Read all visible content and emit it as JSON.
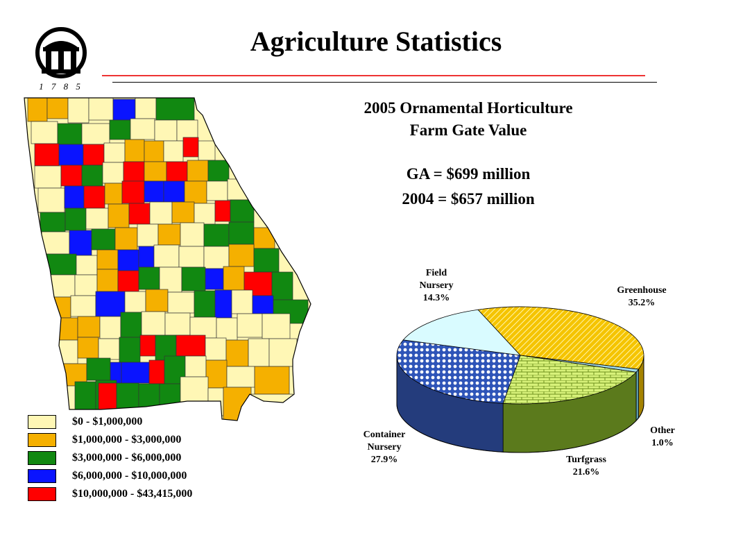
{
  "slide": {
    "title": "Agriculture Statistics",
    "logo_text": "1 7 8 5"
  },
  "legend": [
    {
      "label": "$0 - $1,000,000",
      "color": "#fff7b5"
    },
    {
      "label": "$1,000,000 - $3,000,000",
      "color": "#f5b000"
    },
    {
      "label": "$3,000,000 - $6,000,000",
      "color": "#118811"
    },
    {
      "label": "$6,000,000 - $10,000,000",
      "color": "#0a14ff"
    },
    {
      "label": "$10,000,000 - $43,415,000",
      "color": "#ff0000"
    }
  ],
  "info": {
    "subtitle_line1": "2005 Ornamental Horticulture",
    "subtitle_line2": "Farm Gate Value",
    "ga_value": "GA = $699 million",
    "prior_value": "2004 = $657 million"
  },
  "chart_data": {
    "type": "pie",
    "style": "3d",
    "slices": [
      {
        "name_lines": [
          "Greenhouse"
        ],
        "value": 35.2,
        "label": "35.2%",
        "color": "#f5c400",
        "pattern": "diagonal"
      },
      {
        "name_lines": [
          "Other"
        ],
        "value": 1.0,
        "label": "1.0%",
        "color": "#9fd9e8",
        "pattern": "solid"
      },
      {
        "name_lines": [
          "Turfgrass"
        ],
        "value": 21.6,
        "label": "21.6%",
        "color": "#d8f27a",
        "pattern": "brick"
      },
      {
        "name_lines": [
          "Container",
          "Nursery"
        ],
        "value": 27.9,
        "label": "27.9%",
        "color": "#2e54b8",
        "pattern": "dots"
      },
      {
        "name_lines": [
          "Field",
          "Nursery"
        ],
        "value": 14.3,
        "label": "14.3%",
        "color": "#d9fbff",
        "pattern": "solid"
      }
    ]
  }
}
